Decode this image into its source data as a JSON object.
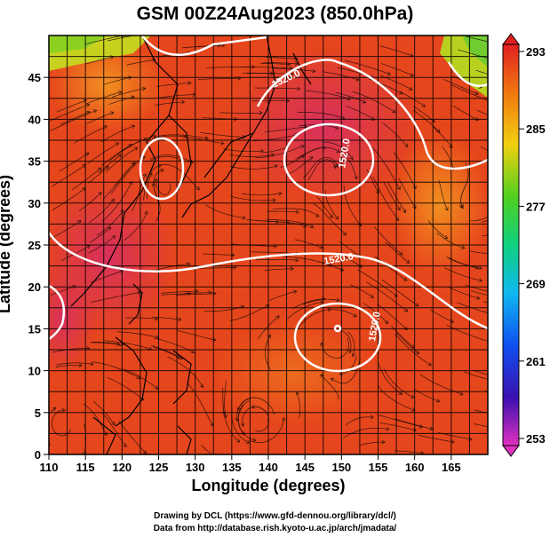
{
  "title": "GSM 00Z24Aug2023 (850.0hPa)",
  "axes": {
    "xlabel": "Longitude (degrees)",
    "ylabel": "Latitude (degrees)",
    "x_ticks": [
      "110",
      "115",
      "120",
      "125",
      "130",
      "135",
      "140",
      "145",
      "150",
      "155",
      "160",
      "165"
    ],
    "y_ticks": [
      "0",
      "5",
      "10",
      "15",
      "20",
      "25",
      "30",
      "35",
      "40",
      "45"
    ]
  },
  "colorbar": {
    "labels": [
      "293",
      "285",
      "277",
      "269",
      "261",
      "253"
    ]
  },
  "contour_labels": [
    "1520.0",
    "1520.0",
    "1520.0",
    "1520.0"
  ],
  "credits": {
    "line1": "Drawing by DCL (https://www.gfd-dennou.org/library/dcl/)",
    "line2": "Data from http://database.rish.kyoto-u.ac.jp/arch/jmadata/"
  },
  "chart_data": {
    "type": "heatmap",
    "title": "GSM 00Z24Aug2023 (850.0hPa)",
    "xlabel": "Longitude (degrees)",
    "ylabel": "Latitude (degrees)",
    "xlim": [
      110,
      170
    ],
    "ylim": [
      0,
      50
    ],
    "grid": true,
    "colorbar_range": [
      253,
      293
    ],
    "colorbar_ticks": [
      253,
      261,
      269,
      277,
      285,
      293
    ],
    "contour_level": 1520.0,
    "colors": {
      "warm": "#e8401a",
      "hot": "#d9305a",
      "mild": "#f07818",
      "cool": "#e8c020",
      "cold": "#7cd020"
    }
  }
}
